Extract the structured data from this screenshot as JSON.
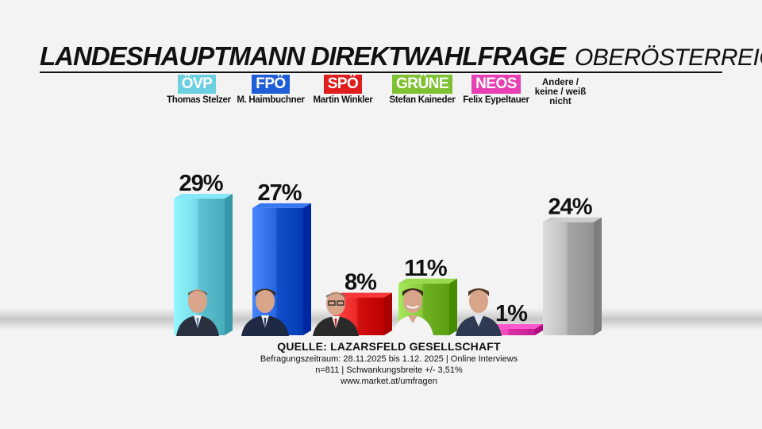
{
  "header": {
    "title": "LANDESHAUPTMANN DIREKTWAHLFRAGE",
    "region": "OBERÖSTERREICH"
  },
  "legend": {
    "other": "Andere / keine / weiß nicht"
  },
  "parties": [
    {
      "party": "ÖVP",
      "candidate": "Thomas Stelzer",
      "color": "#6cd0e0"
    },
    {
      "party": "FPÖ",
      "candidate": "M. Haimbuchner",
      "color": "#1f5ed8"
    },
    {
      "party": "SPÖ",
      "candidate": "Martin Winkler",
      "color": "#e01e1e"
    },
    {
      "party": "GRÜNE",
      "candidate": "Stefan Kaineder",
      "color": "#7ec233"
    },
    {
      "party": "NEOS",
      "candidate": "Felix Eypeltauer",
      "color": "#e83fb4"
    }
  ],
  "chart_data": {
    "type": "bar",
    "title": "LANDESHAUPTMANN DIREKTWAHLFRAGE OBERÖSTERREICH",
    "categories": [
      "ÖVP",
      "FPÖ",
      "SPÖ",
      "GRÜNE",
      "NEOS",
      "Andere / keine / weiß nicht"
    ],
    "values": [
      29,
      27,
      8,
      11,
      1,
      24
    ],
    "labels": [
      "29%",
      "27%",
      "8%",
      "11%",
      "1%",
      "24%"
    ],
    "colors": [
      "#6cd0e0",
      "#1f5ed8",
      "#e01e1e",
      "#7ec233",
      "#e83fb4",
      "#b4b4b4"
    ],
    "ylim": [
      0,
      29
    ],
    "xlabel": "",
    "ylabel": ""
  },
  "source": {
    "head": "QUELLE: LAZARSFELD GESELLSCHAFT",
    "line1": "Befragungszeitraum: 28.11.2025 bis 1.12. 2025 | Online Interviews",
    "line2": "n=811 | Schwankungsbreite +/- 3,51%",
    "line3": "www.market.at/umfragen"
  }
}
